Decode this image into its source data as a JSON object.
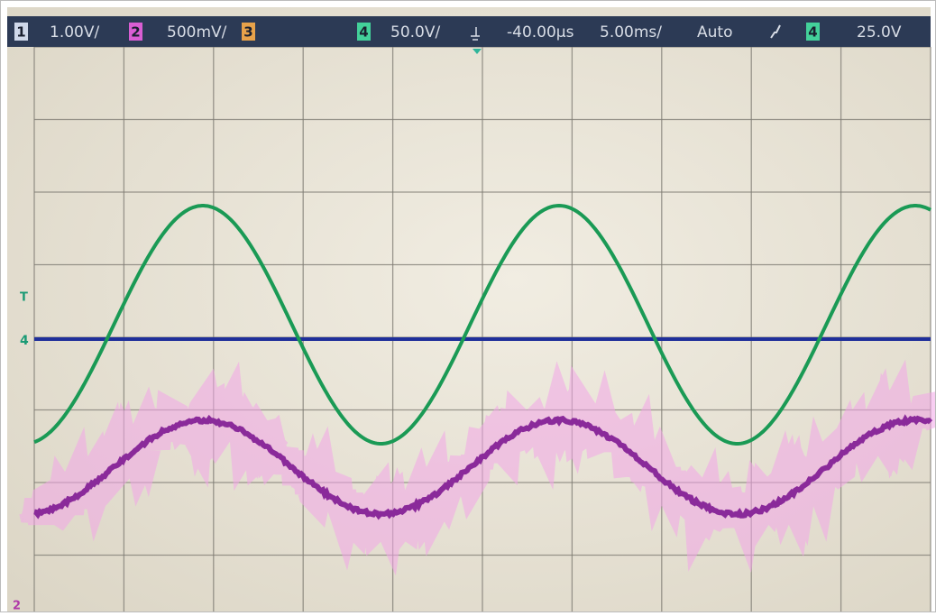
{
  "status_bar": {
    "channels": [
      {
        "number": "1",
        "scale": "1.00V/"
      },
      {
        "number": "2",
        "scale": "500mV/"
      },
      {
        "number": "3"
      },
      {
        "number": "4",
        "scale": "50.0V/"
      }
    ],
    "time_offset": "-40.00µs",
    "time_scale": "5.00ms/",
    "trigger_mode": "Auto",
    "trigger_source": "4",
    "trigger_level": "25.0V"
  },
  "markers": {
    "trigger": "T",
    "channel_4": "4",
    "channel_2": "2"
  }
}
